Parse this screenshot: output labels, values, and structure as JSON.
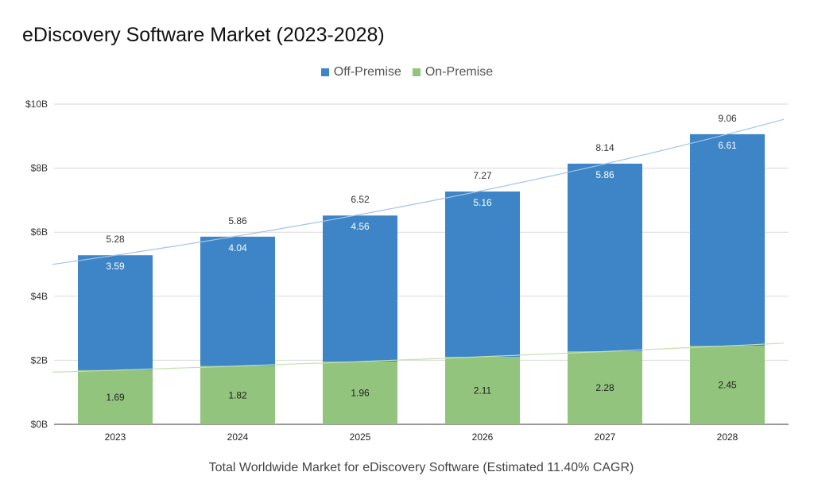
{
  "title": "eDiscovery Software Market (2023-2028)",
  "legend": [
    {
      "label": "Off-Premise",
      "color": "#3d85c6"
    },
    {
      "label": "On-Premise",
      "color": "#93c47d"
    }
  ],
  "xlabel": "Total Worldwide Market for eDiscovery Software (Estimated 11.40% CAGR)",
  "chart_data": {
    "type": "bar",
    "stacked": true,
    "title": "eDiscovery Software Market (2023-2028)",
    "xlabel": "Total Worldwide Market for eDiscovery Software (Estimated 11.40% CAGR)",
    "ylabel": "",
    "categories": [
      "2023",
      "2024",
      "2025",
      "2026",
      "2027",
      "2028"
    ],
    "series": [
      {
        "name": "On-Premise",
        "color": "#93c47d",
        "values": [
          1.69,
          1.82,
          1.96,
          2.11,
          2.28,
          2.45
        ]
      },
      {
        "name": "Off-Premise",
        "color": "#3d85c6",
        "values": [
          3.59,
          4.04,
          4.56,
          5.16,
          5.86,
          6.61
        ]
      }
    ],
    "totals": [
      5.28,
      5.86,
      6.52,
      7.27,
      8.14,
      9.06
    ],
    "ylim": [
      0,
      10
    ],
    "yticks": [
      {
        "value": 0,
        "label": "$0B"
      },
      {
        "value": 2,
        "label": "$2B"
      },
      {
        "value": 4,
        "label": "$4B"
      },
      {
        "value": 6,
        "label": "$6B"
      },
      {
        "value": 8,
        "label": "$8B"
      },
      {
        "value": 10,
        "label": "$10B"
      }
    ],
    "trendlines": [
      {
        "series": "Off-Premise",
        "color": "#a4c2e8"
      },
      {
        "series": "On-Premise",
        "color": "#c6e0b4"
      }
    ],
    "grid": true,
    "legend_position": "top"
  }
}
